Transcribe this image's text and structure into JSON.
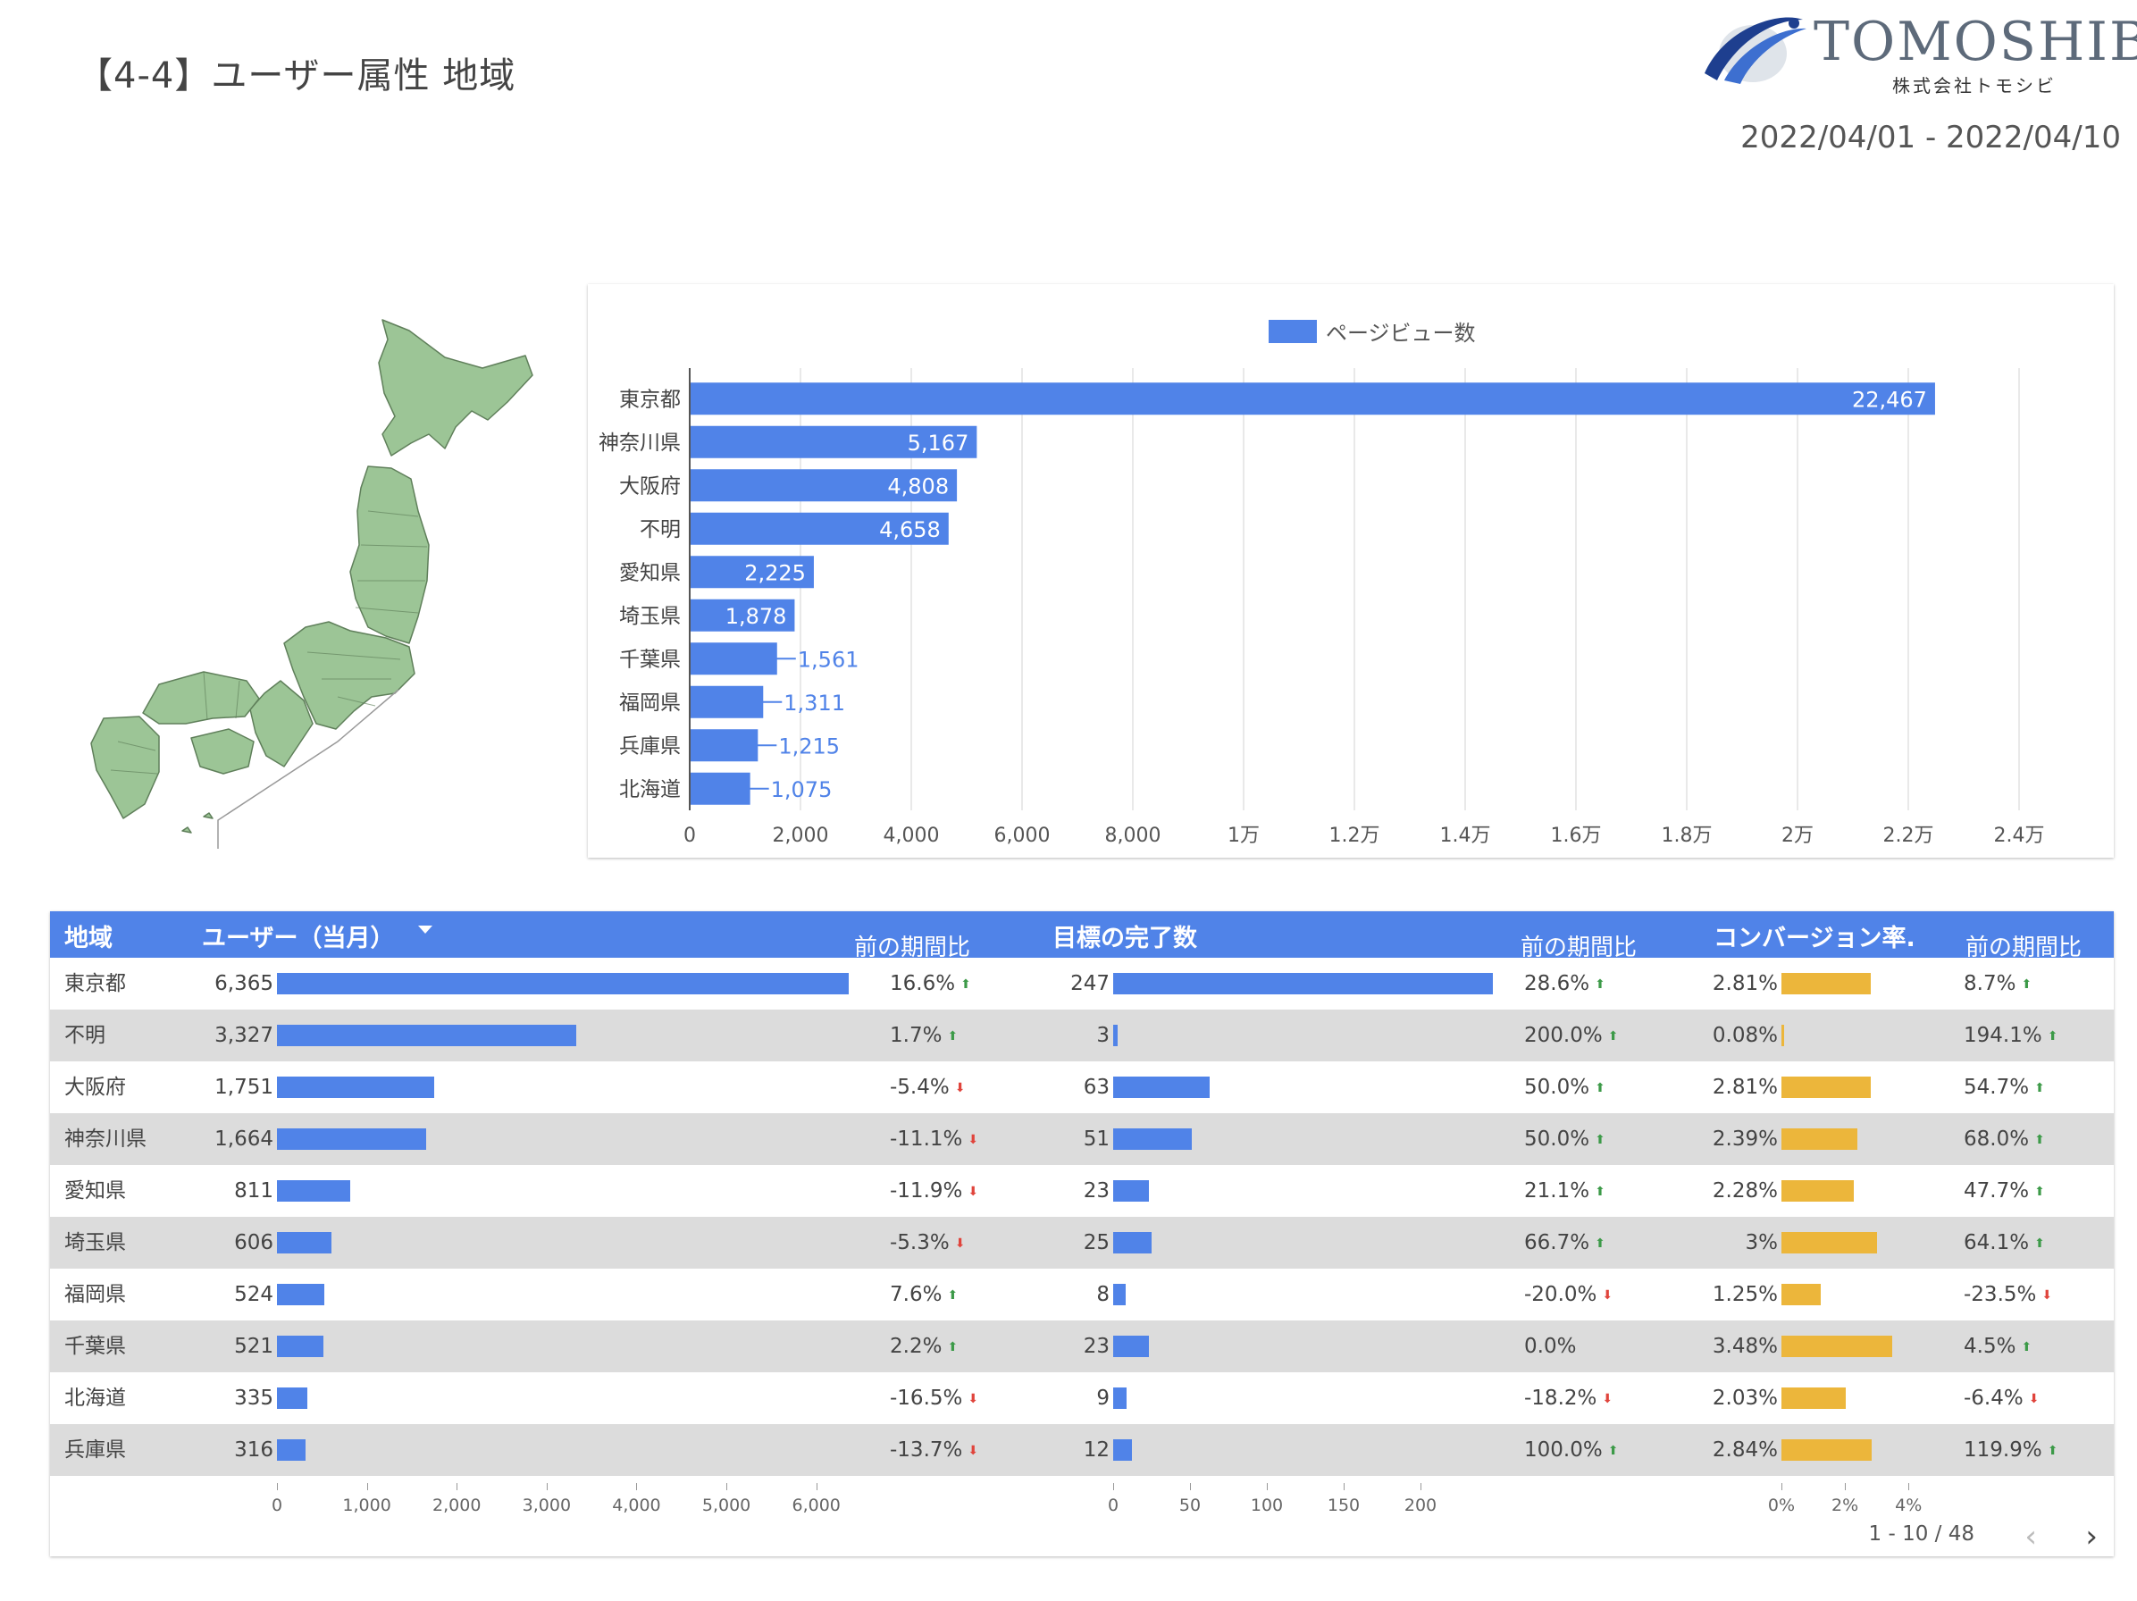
{
  "header": {
    "title": "【4-4】ユーザー属性 地域",
    "logo_text": "TOMOSHIBI",
    "logo_subtext": "株式会社トモシビ",
    "date_range": "2022/04/01 - 2022/04/10"
  },
  "colors": {
    "blue": "#5083e8",
    "amber": "#ecb63b",
    "map_fill": "#9cc596",
    "header_bg": "#5083e8"
  },
  "chart_data": [
    {
      "type": "bar",
      "orientation": "horizontal",
      "title": "",
      "legend": "ページビュー数",
      "legend_position": "top-center",
      "categories": [
        "東京都",
        "神奈川県",
        "大阪府",
        "不明",
        "愛知県",
        "埼玉県",
        "千葉県",
        "福岡県",
        "兵庫県",
        "北海道"
      ],
      "values": [
        22467,
        5167,
        4808,
        4658,
        2225,
        1878,
        1561,
        1311,
        1215,
        1075
      ],
      "value_labels": [
        "22,467",
        "5,167",
        "4,808",
        "4,658",
        "2,225",
        "1,878",
        "1,561",
        "1,311",
        "1,215",
        "1,075"
      ],
      "xlim": [
        0,
        24000
      ],
      "x_ticks": [
        0,
        2000,
        4000,
        6000,
        8000,
        10000,
        12000,
        14000,
        16000,
        18000,
        20000,
        22000,
        24000
      ],
      "x_tick_labels": [
        "0",
        "2,000",
        "4,000",
        "6,000",
        "8,000",
        "1万",
        "1.2万",
        "1.4万",
        "1.6万",
        "1.8万",
        "2万",
        "2.2万",
        "2.4万"
      ],
      "grid": true
    },
    {
      "type": "table",
      "columns": [
        "地域",
        "ユーザー（当月）",
        "前の期間比",
        "目標の完了数",
        "前の期間比",
        "コンバージョン率.",
        "前の期間比"
      ],
      "sort_column": "ユーザー（当月）",
      "sort_order": "descending",
      "rows": [
        {
          "region": "東京都",
          "users": 6365,
          "users_label": "6,365",
          "users_chg": "16.6%",
          "users_dir": "up",
          "goals": 247,
          "goals_label": "247",
          "goals_chg": "28.6%",
          "goals_dir": "up",
          "cvr": 2.81,
          "cvr_label": "2.81%",
          "cvr_chg": "8.7%",
          "cvr_dir": "up"
        },
        {
          "region": "不明",
          "users": 3327,
          "users_label": "3,327",
          "users_chg": "1.7%",
          "users_dir": "up",
          "goals": 3,
          "goals_label": "3",
          "goals_chg": "200.0%",
          "goals_dir": "up",
          "cvr": 0.08,
          "cvr_label": "0.08%",
          "cvr_chg": "194.1%",
          "cvr_dir": "up"
        },
        {
          "region": "大阪府",
          "users": 1751,
          "users_label": "1,751",
          "users_chg": "-5.4%",
          "users_dir": "down",
          "goals": 63,
          "goals_label": "63",
          "goals_chg": "50.0%",
          "goals_dir": "up",
          "cvr": 2.81,
          "cvr_label": "2.81%",
          "cvr_chg": "54.7%",
          "cvr_dir": "up"
        },
        {
          "region": "神奈川県",
          "users": 1664,
          "users_label": "1,664",
          "users_chg": "-11.1%",
          "users_dir": "down",
          "goals": 51,
          "goals_label": "51",
          "goals_chg": "50.0%",
          "goals_dir": "up",
          "cvr": 2.39,
          "cvr_label": "2.39%",
          "cvr_chg": "68.0%",
          "cvr_dir": "up"
        },
        {
          "region": "愛知県",
          "users": 811,
          "users_label": "811",
          "users_chg": "-11.9%",
          "users_dir": "down",
          "goals": 23,
          "goals_label": "23",
          "goals_chg": "21.1%",
          "goals_dir": "up",
          "cvr": 2.28,
          "cvr_label": "2.28%",
          "cvr_chg": "47.7%",
          "cvr_dir": "up"
        },
        {
          "region": "埼玉県",
          "users": 606,
          "users_label": "606",
          "users_chg": "-5.3%",
          "users_dir": "down",
          "goals": 25,
          "goals_label": "25",
          "goals_chg": "66.7%",
          "goals_dir": "up",
          "cvr": 3,
          "cvr_label": "3%",
          "cvr_chg": "64.1%",
          "cvr_dir": "up"
        },
        {
          "region": "福岡県",
          "users": 524,
          "users_label": "524",
          "users_chg": "7.6%",
          "users_dir": "up",
          "goals": 8,
          "goals_label": "8",
          "goals_chg": "-20.0%",
          "goals_dir": "down",
          "cvr": 1.25,
          "cvr_label": "1.25%",
          "cvr_chg": "-23.5%",
          "cvr_dir": "down"
        },
        {
          "region": "千葉県",
          "users": 521,
          "users_label": "521",
          "users_chg": "2.2%",
          "users_dir": "up",
          "goals": 23,
          "goals_label": "23",
          "goals_chg": "0.0%",
          "goals_dir": "none",
          "cvr": 3.48,
          "cvr_label": "3.48%",
          "cvr_chg": "4.5%",
          "cvr_dir": "up"
        },
        {
          "region": "北海道",
          "users": 335,
          "users_label": "335",
          "users_chg": "-16.5%",
          "users_dir": "down",
          "goals": 9,
          "goals_label": "9",
          "goals_chg": "-18.2%",
          "goals_dir": "down",
          "cvr": 2.03,
          "cvr_label": "2.03%",
          "cvr_chg": "-6.4%",
          "cvr_dir": "down"
        },
        {
          "region": "兵庫県",
          "users": 316,
          "users_label": "316",
          "users_chg": "-13.7%",
          "users_dir": "down",
          "goals": 12,
          "goals_label": "12",
          "goals_chg": "100.0%",
          "goals_dir": "up",
          "cvr": 2.84,
          "cvr_label": "2.84%",
          "cvr_chg": "119.9%",
          "cvr_dir": "up"
        }
      ],
      "users_axis": {
        "max": 6500,
        "ticks": [
          0,
          1000,
          2000,
          3000,
          4000,
          5000,
          6000
        ],
        "tick_labels": [
          "0",
          "1,000",
          "2,000",
          "3,000",
          "4,000",
          "5,000",
          "6,000"
        ]
      },
      "goals_axis": {
        "max": 250,
        "ticks": [
          0,
          50,
          100,
          150,
          200
        ],
        "tick_labels": [
          "0",
          "50",
          "100",
          "150",
          "200"
        ]
      },
      "cvr_axis": {
        "max": 4.5,
        "ticks": [
          0,
          2,
          4
        ],
        "tick_labels": [
          "0%",
          "2%",
          "4%"
        ]
      },
      "pagination": "1 - 10 / 48"
    }
  ]
}
